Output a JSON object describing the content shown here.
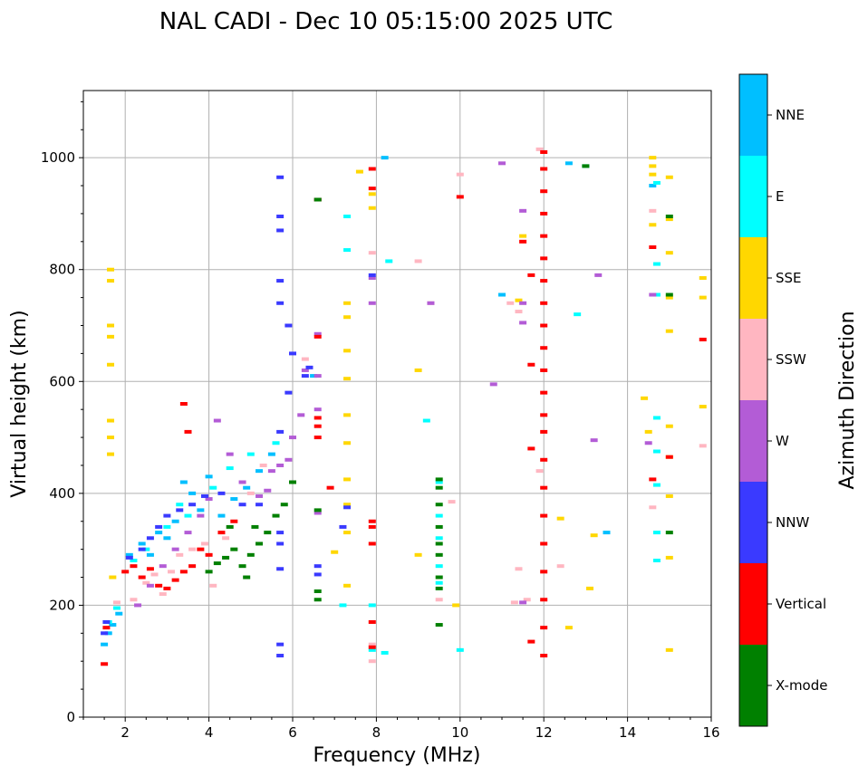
{
  "chart_data": {
    "type": "scatter",
    "title": "NAL CADI - Dec 10 05:15:00 2025 UTC",
    "xlabel": "Frequency (MHz)",
    "ylabel": "Virtual height (km)",
    "xlim": [
      1,
      16
    ],
    "ylim": [
      0,
      1120
    ],
    "xticks": [
      2,
      4,
      6,
      8,
      10,
      12,
      14,
      16
    ],
    "xtick_labels": [
      "2",
      "4",
      "6",
      "8",
      "10",
      "12",
      "14",
      "16"
    ],
    "yticks": [
      0,
      200,
      400,
      600,
      800,
      1000
    ],
    "ytick_labels": [
      "0",
      "200",
      "400",
      "600",
      "800",
      "1000"
    ],
    "grid": true,
    "colorbar": {
      "label": "Azimuth Direction",
      "categories": [
        {
          "name": "X-mode",
          "color": "#008000"
        },
        {
          "name": "Vertical",
          "color": "#ff0000"
        },
        {
          "name": "NNW",
          "color": "#3a3aff"
        },
        {
          "name": "W",
          "color": "#b35cd6"
        },
        {
          "name": "SSW",
          "color": "#ffb6c1"
        },
        {
          "name": "SSE",
          "color": "#ffd700"
        },
        {
          "name": "E",
          "color": "#00ffff"
        },
        {
          "name": "NNE",
          "color": "#00bfff"
        }
      ]
    },
    "series": [
      {
        "name": "NNE",
        "points": [
          [
            1.5,
            130
          ],
          [
            1.6,
            150
          ],
          [
            1.7,
            165
          ],
          [
            1.85,
            185
          ],
          [
            2.1,
            290
          ],
          [
            2.4,
            310
          ],
          [
            2.6,
            290
          ],
          [
            2.8,
            330
          ],
          [
            3.0,
            320
          ],
          [
            3.2,
            350
          ],
          [
            3.4,
            420
          ],
          [
            3.6,
            400
          ],
          [
            3.8,
            370
          ],
          [
            4.0,
            430
          ],
          [
            4.3,
            360
          ],
          [
            4.6,
            390
          ],
          [
            4.9,
            410
          ],
          [
            5.2,
            440
          ],
          [
            5.5,
            470
          ],
          [
            6.5,
            610
          ],
          [
            8.2,
            1000
          ],
          [
            11.0,
            755
          ],
          [
            12.6,
            990
          ],
          [
            13.5,
            330
          ],
          [
            14.6,
            950
          ]
        ]
      },
      {
        "name": "E",
        "points": [
          [
            1.6,
            170
          ],
          [
            1.8,
            195
          ],
          [
            2.2,
            280
          ],
          [
            2.5,
            300
          ],
          [
            3.0,
            340
          ],
          [
            3.3,
            380
          ],
          [
            3.5,
            360
          ],
          [
            4.1,
            410
          ],
          [
            4.5,
            445
          ],
          [
            5.0,
            470
          ],
          [
            5.6,
            490
          ],
          [
            7.2,
            200
          ],
          [
            7.3,
            835
          ],
          [
            7.3,
            895
          ],
          [
            7.9,
            200
          ],
          [
            7.9,
            120
          ],
          [
            8.2,
            115
          ],
          [
            8.3,
            815
          ],
          [
            9.2,
            530
          ],
          [
            9.5,
            420
          ],
          [
            9.5,
            360
          ],
          [
            9.5,
            320
          ],
          [
            9.5,
            270
          ],
          [
            9.5,
            240
          ],
          [
            10.0,
            120
          ],
          [
            12.8,
            720
          ],
          [
            13.0,
            985
          ],
          [
            14.7,
            280
          ],
          [
            14.7,
            330
          ],
          [
            14.7,
            415
          ],
          [
            14.7,
            475
          ],
          [
            14.7,
            535
          ],
          [
            14.7,
            755
          ],
          [
            14.7,
            810
          ],
          [
            14.7,
            955
          ]
        ]
      },
      {
        "name": "SSE",
        "points": [
          [
            1.65,
            800
          ],
          [
            1.65,
            780
          ],
          [
            1.65,
            700
          ],
          [
            1.65,
            680
          ],
          [
            1.65,
            630
          ],
          [
            1.65,
            530
          ],
          [
            1.65,
            500
          ],
          [
            1.65,
            470
          ],
          [
            1.7,
            250
          ],
          [
            7.0,
            295
          ],
          [
            7.3,
            235
          ],
          [
            7.3,
            330
          ],
          [
            7.3,
            380
          ],
          [
            7.3,
            425
          ],
          [
            7.3,
            490
          ],
          [
            7.3,
            540
          ],
          [
            7.3,
            605
          ],
          [
            7.3,
            655
          ],
          [
            7.3,
            715
          ],
          [
            7.3,
            740
          ],
          [
            7.6,
            975
          ],
          [
            7.9,
            935
          ],
          [
            7.9,
            910
          ],
          [
            9.0,
            290
          ],
          [
            9.0,
            620
          ],
          [
            9.9,
            200
          ],
          [
            11.4,
            745
          ],
          [
            11.5,
            860
          ],
          [
            12.4,
            355
          ],
          [
            12.6,
            160
          ],
          [
            13.1,
            230
          ],
          [
            13.2,
            325
          ],
          [
            14.4,
            570
          ],
          [
            14.5,
            510
          ],
          [
            14.6,
            880
          ],
          [
            14.6,
            970
          ],
          [
            14.6,
            985
          ],
          [
            14.6,
            1000
          ],
          [
            15.0,
            120
          ],
          [
            15.0,
            285
          ],
          [
            15.0,
            395
          ],
          [
            15.0,
            465
          ],
          [
            15.0,
            520
          ],
          [
            15.0,
            690
          ],
          [
            15.0,
            750
          ],
          [
            15.0,
            830
          ],
          [
            15.0,
            890
          ],
          [
            15.0,
            965
          ],
          [
            15.8,
            555
          ],
          [
            15.8,
            750
          ],
          [
            15.8,
            785
          ]
        ]
      },
      {
        "name": "SSW",
        "points": [
          [
            1.8,
            205
          ],
          [
            2.2,
            210
          ],
          [
            2.5,
            240
          ],
          [
            2.7,
            255
          ],
          [
            2.9,
            220
          ],
          [
            3.1,
            260
          ],
          [
            3.3,
            290
          ],
          [
            3.6,
            300
          ],
          [
            3.9,
            310
          ],
          [
            4.1,
            235
          ],
          [
            4.4,
            320
          ],
          [
            5.0,
            400
          ],
          [
            5.3,
            450
          ],
          [
            6.3,
            640
          ],
          [
            7.9,
            100
          ],
          [
            7.9,
            130
          ],
          [
            7.9,
            830
          ],
          [
            9.0,
            815
          ],
          [
            9.3,
            740
          ],
          [
            9.5,
            210
          ],
          [
            9.8,
            385
          ],
          [
            10.0,
            970
          ],
          [
            11.2,
            740
          ],
          [
            11.3,
            205
          ],
          [
            11.4,
            265
          ],
          [
            11.4,
            725
          ],
          [
            11.6,
            210
          ],
          [
            11.9,
            440
          ],
          [
            11.9,
            1015
          ],
          [
            12.4,
            270
          ],
          [
            14.6,
            375
          ],
          [
            14.6,
            905
          ],
          [
            15.8,
            485
          ]
        ]
      },
      {
        "name": "W",
        "points": [
          [
            2.3,
            200
          ],
          [
            2.6,
            235
          ],
          [
            2.9,
            270
          ],
          [
            3.2,
            300
          ],
          [
            3.5,
            330
          ],
          [
            3.8,
            360
          ],
          [
            4.0,
            390
          ],
          [
            4.2,
            530
          ],
          [
            4.5,
            470
          ],
          [
            4.8,
            420
          ],
          [
            5.2,
            395
          ],
          [
            5.4,
            405
          ],
          [
            5.5,
            440
          ],
          [
            5.7,
            450
          ],
          [
            5.9,
            460
          ],
          [
            6.0,
            500
          ],
          [
            6.2,
            540
          ],
          [
            6.3,
            620
          ],
          [
            6.6,
            365
          ],
          [
            6.6,
            550
          ],
          [
            6.6,
            610
          ],
          [
            6.6,
            685
          ],
          [
            6.6,
            925
          ],
          [
            7.9,
            740
          ],
          [
            7.9,
            785
          ],
          [
            9.3,
            740
          ],
          [
            10.8,
            595
          ],
          [
            11.0,
            990
          ],
          [
            11.5,
            205
          ],
          [
            11.5,
            705
          ],
          [
            11.5,
            740
          ],
          [
            11.5,
            905
          ],
          [
            13.2,
            495
          ],
          [
            13.3,
            790
          ],
          [
            14.5,
            490
          ],
          [
            14.6,
            755
          ]
        ]
      },
      {
        "name": "NNW",
        "points": [
          [
            1.5,
            150
          ],
          [
            1.55,
            170
          ],
          [
            2.1,
            285
          ],
          [
            2.4,
            300
          ],
          [
            2.6,
            320
          ],
          [
            2.8,
            340
          ],
          [
            3.0,
            360
          ],
          [
            3.3,
            370
          ],
          [
            3.6,
            380
          ],
          [
            3.9,
            395
          ],
          [
            4.3,
            400
          ],
          [
            4.8,
            380
          ],
          [
            5.2,
            380
          ],
          [
            5.7,
            110
          ],
          [
            5.7,
            130
          ],
          [
            5.7,
            265
          ],
          [
            5.7,
            310
          ],
          [
            5.7,
            330
          ],
          [
            5.7,
            510
          ],
          [
            5.7,
            740
          ],
          [
            5.7,
            780
          ],
          [
            5.7,
            870
          ],
          [
            5.7,
            895
          ],
          [
            5.7,
            965
          ],
          [
            5.9,
            580
          ],
          [
            5.9,
            700
          ],
          [
            6.0,
            650
          ],
          [
            6.3,
            610
          ],
          [
            6.4,
            625
          ],
          [
            6.6,
            255
          ],
          [
            6.6,
            270
          ],
          [
            7.2,
            340
          ],
          [
            7.3,
            375
          ],
          [
            7.9,
            790
          ]
        ]
      },
      {
        "name": "Vertical",
        "points": [
          [
            1.5,
            95
          ],
          [
            1.55,
            160
          ],
          [
            2.0,
            260
          ],
          [
            2.2,
            270
          ],
          [
            2.4,
            250
          ],
          [
            2.6,
            265
          ],
          [
            2.8,
            235
          ],
          [
            3.0,
            230
          ],
          [
            3.2,
            245
          ],
          [
            3.4,
            260
          ],
          [
            3.6,
            270
          ],
          [
            3.8,
            300
          ],
          [
            4.0,
            290
          ],
          [
            4.3,
            330
          ],
          [
            4.6,
            350
          ],
          [
            3.4,
            560
          ],
          [
            3.5,
            510
          ],
          [
            6.6,
            500
          ],
          [
            6.6,
            520
          ],
          [
            6.6,
            535
          ],
          [
            6.6,
            680
          ],
          [
            6.6,
            925
          ],
          [
            6.9,
            410
          ],
          [
            7.9,
            310
          ],
          [
            7.9,
            340
          ],
          [
            7.9,
            350
          ],
          [
            7.9,
            125
          ],
          [
            7.9,
            170
          ],
          [
            7.9,
            945
          ],
          [
            7.9,
            980
          ],
          [
            10.0,
            930
          ],
          [
            11.5,
            850
          ],
          [
            11.7,
            480
          ],
          [
            11.7,
            630
          ],
          [
            11.7,
            790
          ],
          [
            11.7,
            135
          ],
          [
            12.0,
            110
          ],
          [
            12.0,
            160
          ],
          [
            12.0,
            210
          ],
          [
            12.0,
            260
          ],
          [
            12.0,
            310
          ],
          [
            12.0,
            360
          ],
          [
            12.0,
            410
          ],
          [
            12.0,
            460
          ],
          [
            12.0,
            510
          ],
          [
            12.0,
            540
          ],
          [
            12.0,
            580
          ],
          [
            12.0,
            620
          ],
          [
            12.0,
            660
          ],
          [
            12.0,
            700
          ],
          [
            12.0,
            740
          ],
          [
            12.0,
            780
          ],
          [
            12.0,
            820
          ],
          [
            12.0,
            860
          ],
          [
            12.0,
            900
          ],
          [
            12.0,
            940
          ],
          [
            12.0,
            980
          ],
          [
            12.0,
            1010
          ],
          [
            14.6,
            425
          ],
          [
            14.6,
            840
          ],
          [
            15.0,
            465
          ],
          [
            15.8,
            675
          ]
        ]
      },
      {
        "name": "X-mode",
        "points": [
          [
            4.0,
            260
          ],
          [
            4.2,
            275
          ],
          [
            4.4,
            285
          ],
          [
            4.6,
            300
          ],
          [
            4.8,
            270
          ],
          [
            5.0,
            290
          ],
          [
            5.2,
            310
          ],
          [
            5.4,
            330
          ],
          [
            5.6,
            360
          ],
          [
            5.8,
            380
          ],
          [
            6.0,
            420
          ],
          [
            4.5,
            340
          ],
          [
            4.9,
            250
          ],
          [
            5.1,
            340
          ],
          [
            6.6,
            210
          ],
          [
            6.6,
            225
          ],
          [
            6.6,
            370
          ],
          [
            6.6,
            925
          ],
          [
            9.5,
            165
          ],
          [
            9.5,
            230
          ],
          [
            9.5,
            250
          ],
          [
            9.5,
            290
          ],
          [
            9.5,
            310
          ],
          [
            9.5,
            340
          ],
          [
            9.5,
            380
          ],
          [
            9.5,
            410
          ],
          [
            9.5,
            425
          ],
          [
            13.0,
            985
          ],
          [
            15.0,
            330
          ],
          [
            15.0,
            755
          ],
          [
            15.0,
            895
          ]
        ]
      }
    ]
  }
}
